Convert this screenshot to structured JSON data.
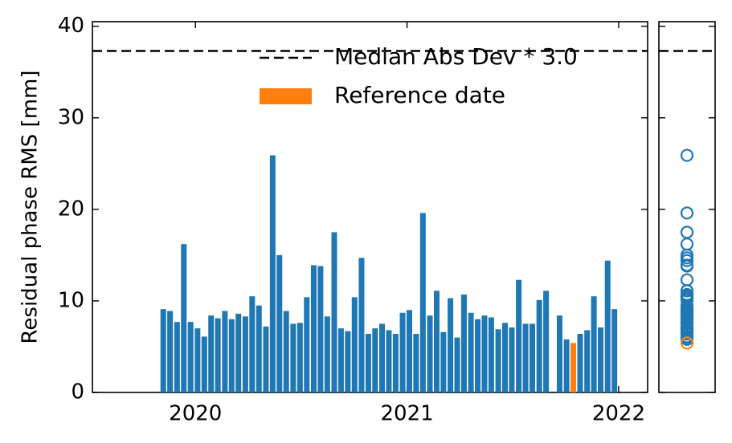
{
  "chart_data": {
    "type": "bar",
    "y_label": "Residual phase RMS [mm]",
    "xlim": [
      2019.513,
      2022.137
    ],
    "xticks": [
      2020,
      2021,
      2022
    ],
    "ylim": [
      0,
      40.5
    ],
    "yticks": [
      0,
      10,
      20,
      30,
      40
    ],
    "series": [
      {
        "color": "#1f77b4",
        "x": [
          2019.848,
          2019.88,
          2019.913,
          2019.945,
          2019.977,
          2020.01,
          2020.042,
          2020.074,
          2020.106,
          2020.139,
          2020.171,
          2020.203,
          2020.236,
          2020.268,
          2020.3,
          2020.333,
          2020.365,
          2020.397,
          2020.429,
          2020.462,
          2020.494,
          2020.526,
          2020.559,
          2020.591,
          2020.623,
          2020.656,
          2020.688,
          2020.72,
          2020.752,
          2020.785,
          2020.817,
          2020.849,
          2020.882,
          2020.914,
          2020.946,
          2020.979,
          2021.011,
          2021.043,
          2021.075,
          2021.108,
          2021.14,
          2021.172,
          2021.205,
          2021.237,
          2021.269,
          2021.302,
          2021.334,
          2021.366,
          2021.398,
          2021.431,
          2021.463,
          2021.495,
          2021.528,
          2021.56,
          2021.592,
          2021.625,
          2021.657,
          2021.721,
          2021.754,
          2021.818,
          2021.851,
          2021.883,
          2021.915,
          2021.948,
          2021.98
        ],
        "values": [
          9.1,
          8.9,
          7.7,
          16.2,
          7.7,
          7.0,
          6.1,
          8.4,
          8.1,
          8.9,
          8.0,
          8.6,
          8.3,
          10.5,
          9.5,
          7.2,
          25.9,
          15.0,
          8.9,
          7.5,
          7.6,
          10.4,
          13.9,
          13.8,
          8.3,
          17.5,
          7.0,
          6.7,
          10.4,
          14.7,
          6.4,
          7.0,
          7.5,
          6.8,
          6.4,
          8.7,
          9.0,
          6.4,
          19.6,
          8.4,
          11.1,
          6.6,
          10.3,
          6.0,
          10.7,
          8.7,
          8.0,
          8.4,
          8.2,
          6.9,
          7.6,
          7.1,
          12.3,
          7.5,
          7.5,
          10.1,
          11.1,
          8.4,
          5.8,
          6.4,
          6.8,
          10.5,
          7.1,
          14.4,
          9.1
        ]
      },
      {
        "name": "Reference date",
        "color": "#ff7f0e",
        "x": [
          2021.786
        ],
        "values": [
          5.4
        ]
      }
    ],
    "hlines": [
      {
        "name": "Median Abs Dev * 3.0",
        "value": 37.3,
        "color": "#000000",
        "style": "dashed"
      }
    ]
  }
}
